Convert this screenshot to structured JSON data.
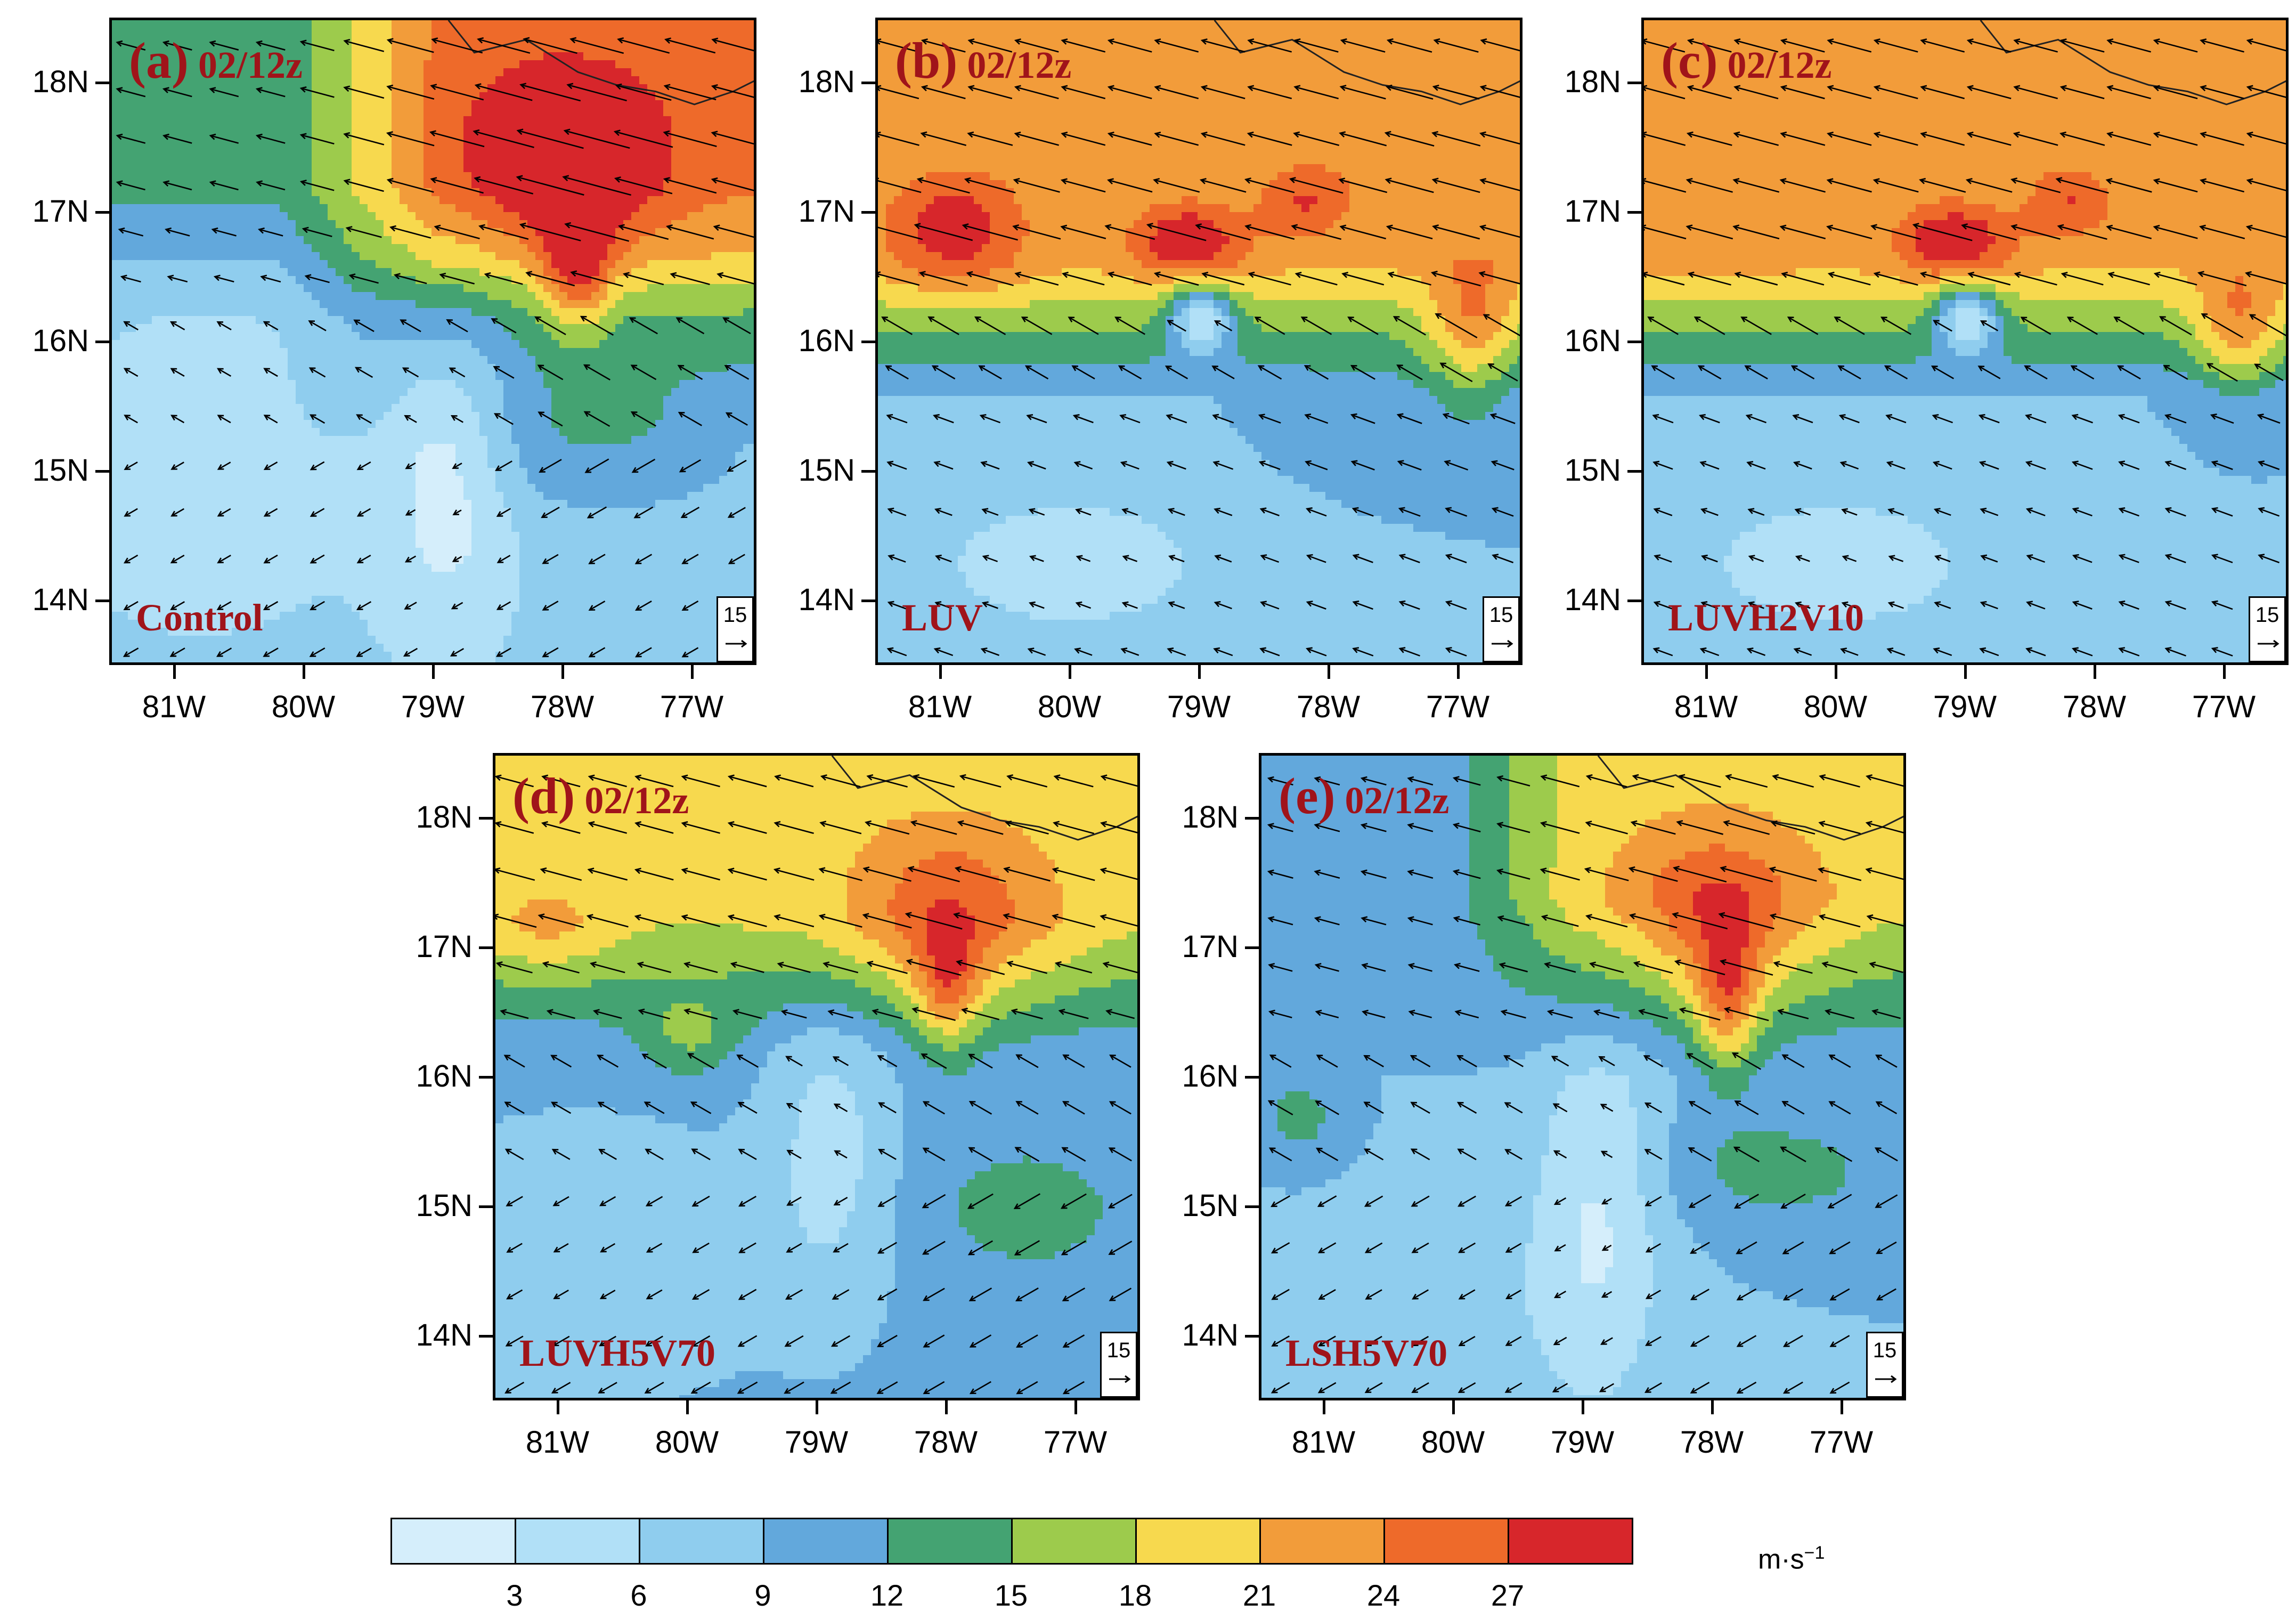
{
  "figure": {
    "panels": [
      {
        "id": "a",
        "letter": "(a)",
        "time": "02/12z",
        "experiment": "Control",
        "ref_vector": "15",
        "pattern": "control"
      },
      {
        "id": "b",
        "letter": "(b)",
        "time": "02/12z",
        "experiment": "LUV",
        "ref_vector": "15",
        "pattern": "luv"
      },
      {
        "id": "c",
        "letter": "(c)",
        "time": "02/12z",
        "experiment": "LUVH2V10",
        "ref_vector": "15",
        "pattern": "luvh2v10"
      },
      {
        "id": "d",
        "letter": "(d)",
        "time": "02/12z",
        "experiment": "LUVH5V70",
        "ref_vector": "15",
        "pattern": "luvh5v70"
      },
      {
        "id": "e",
        "letter": "(e)",
        "time": "02/12z",
        "experiment": "LSH5V70",
        "ref_vector": "15",
        "pattern": "lsh5v70"
      }
    ],
    "axes": {
      "lat_ticks": [
        "18N",
        "17N",
        "16N",
        "15N",
        "14N"
      ],
      "lon_ticks": [
        "81W",
        "80W",
        "79W",
        "78W",
        "77W"
      ],
      "lat_range": [
        13.5,
        18.5
      ],
      "lon_range": [
        81.5,
        76.5
      ]
    },
    "colorbar": {
      "units_main": "m·s",
      "units_exp": "−1",
      "boundaries": [
        "3",
        "6",
        "9",
        "12",
        "15",
        "18",
        "21",
        "24",
        "27"
      ],
      "colors": [
        "#d5eefb",
        "#b1e0f7",
        "#8fcdee",
        "#62a8dc",
        "#44a372",
        "#9dcb4c",
        "#f7d94e",
        "#f29c3a",
        "#ee6a2a",
        "#d7262b"
      ]
    }
  }
}
